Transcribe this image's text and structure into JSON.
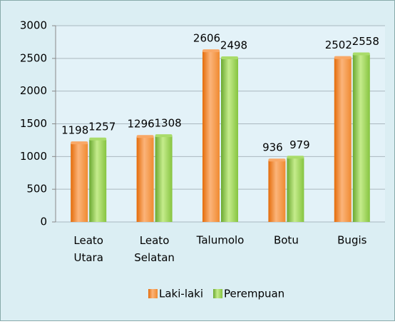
{
  "chart_data": {
    "type": "bar",
    "categories": [
      "Leato Utara",
      "Leato Selatan",
      "Talumolo",
      "Botu",
      "Bugis"
    ],
    "series": [
      {
        "name": "Laki-laki",
        "color": "#f79646",
        "values": [
          1198,
          1296,
          2606,
          936,
          2502
        ]
      },
      {
        "name": "Perempuan",
        "color": "#92d050",
        "values": [
          1257,
          1308,
          2498,
          979,
          2558
        ]
      }
    ],
    "ylim": [
      0,
      3000
    ],
    "yticks": [
      0,
      500,
      1000,
      1500,
      2000,
      2500,
      3000
    ],
    "grid": true,
    "legend": "bottom"
  }
}
